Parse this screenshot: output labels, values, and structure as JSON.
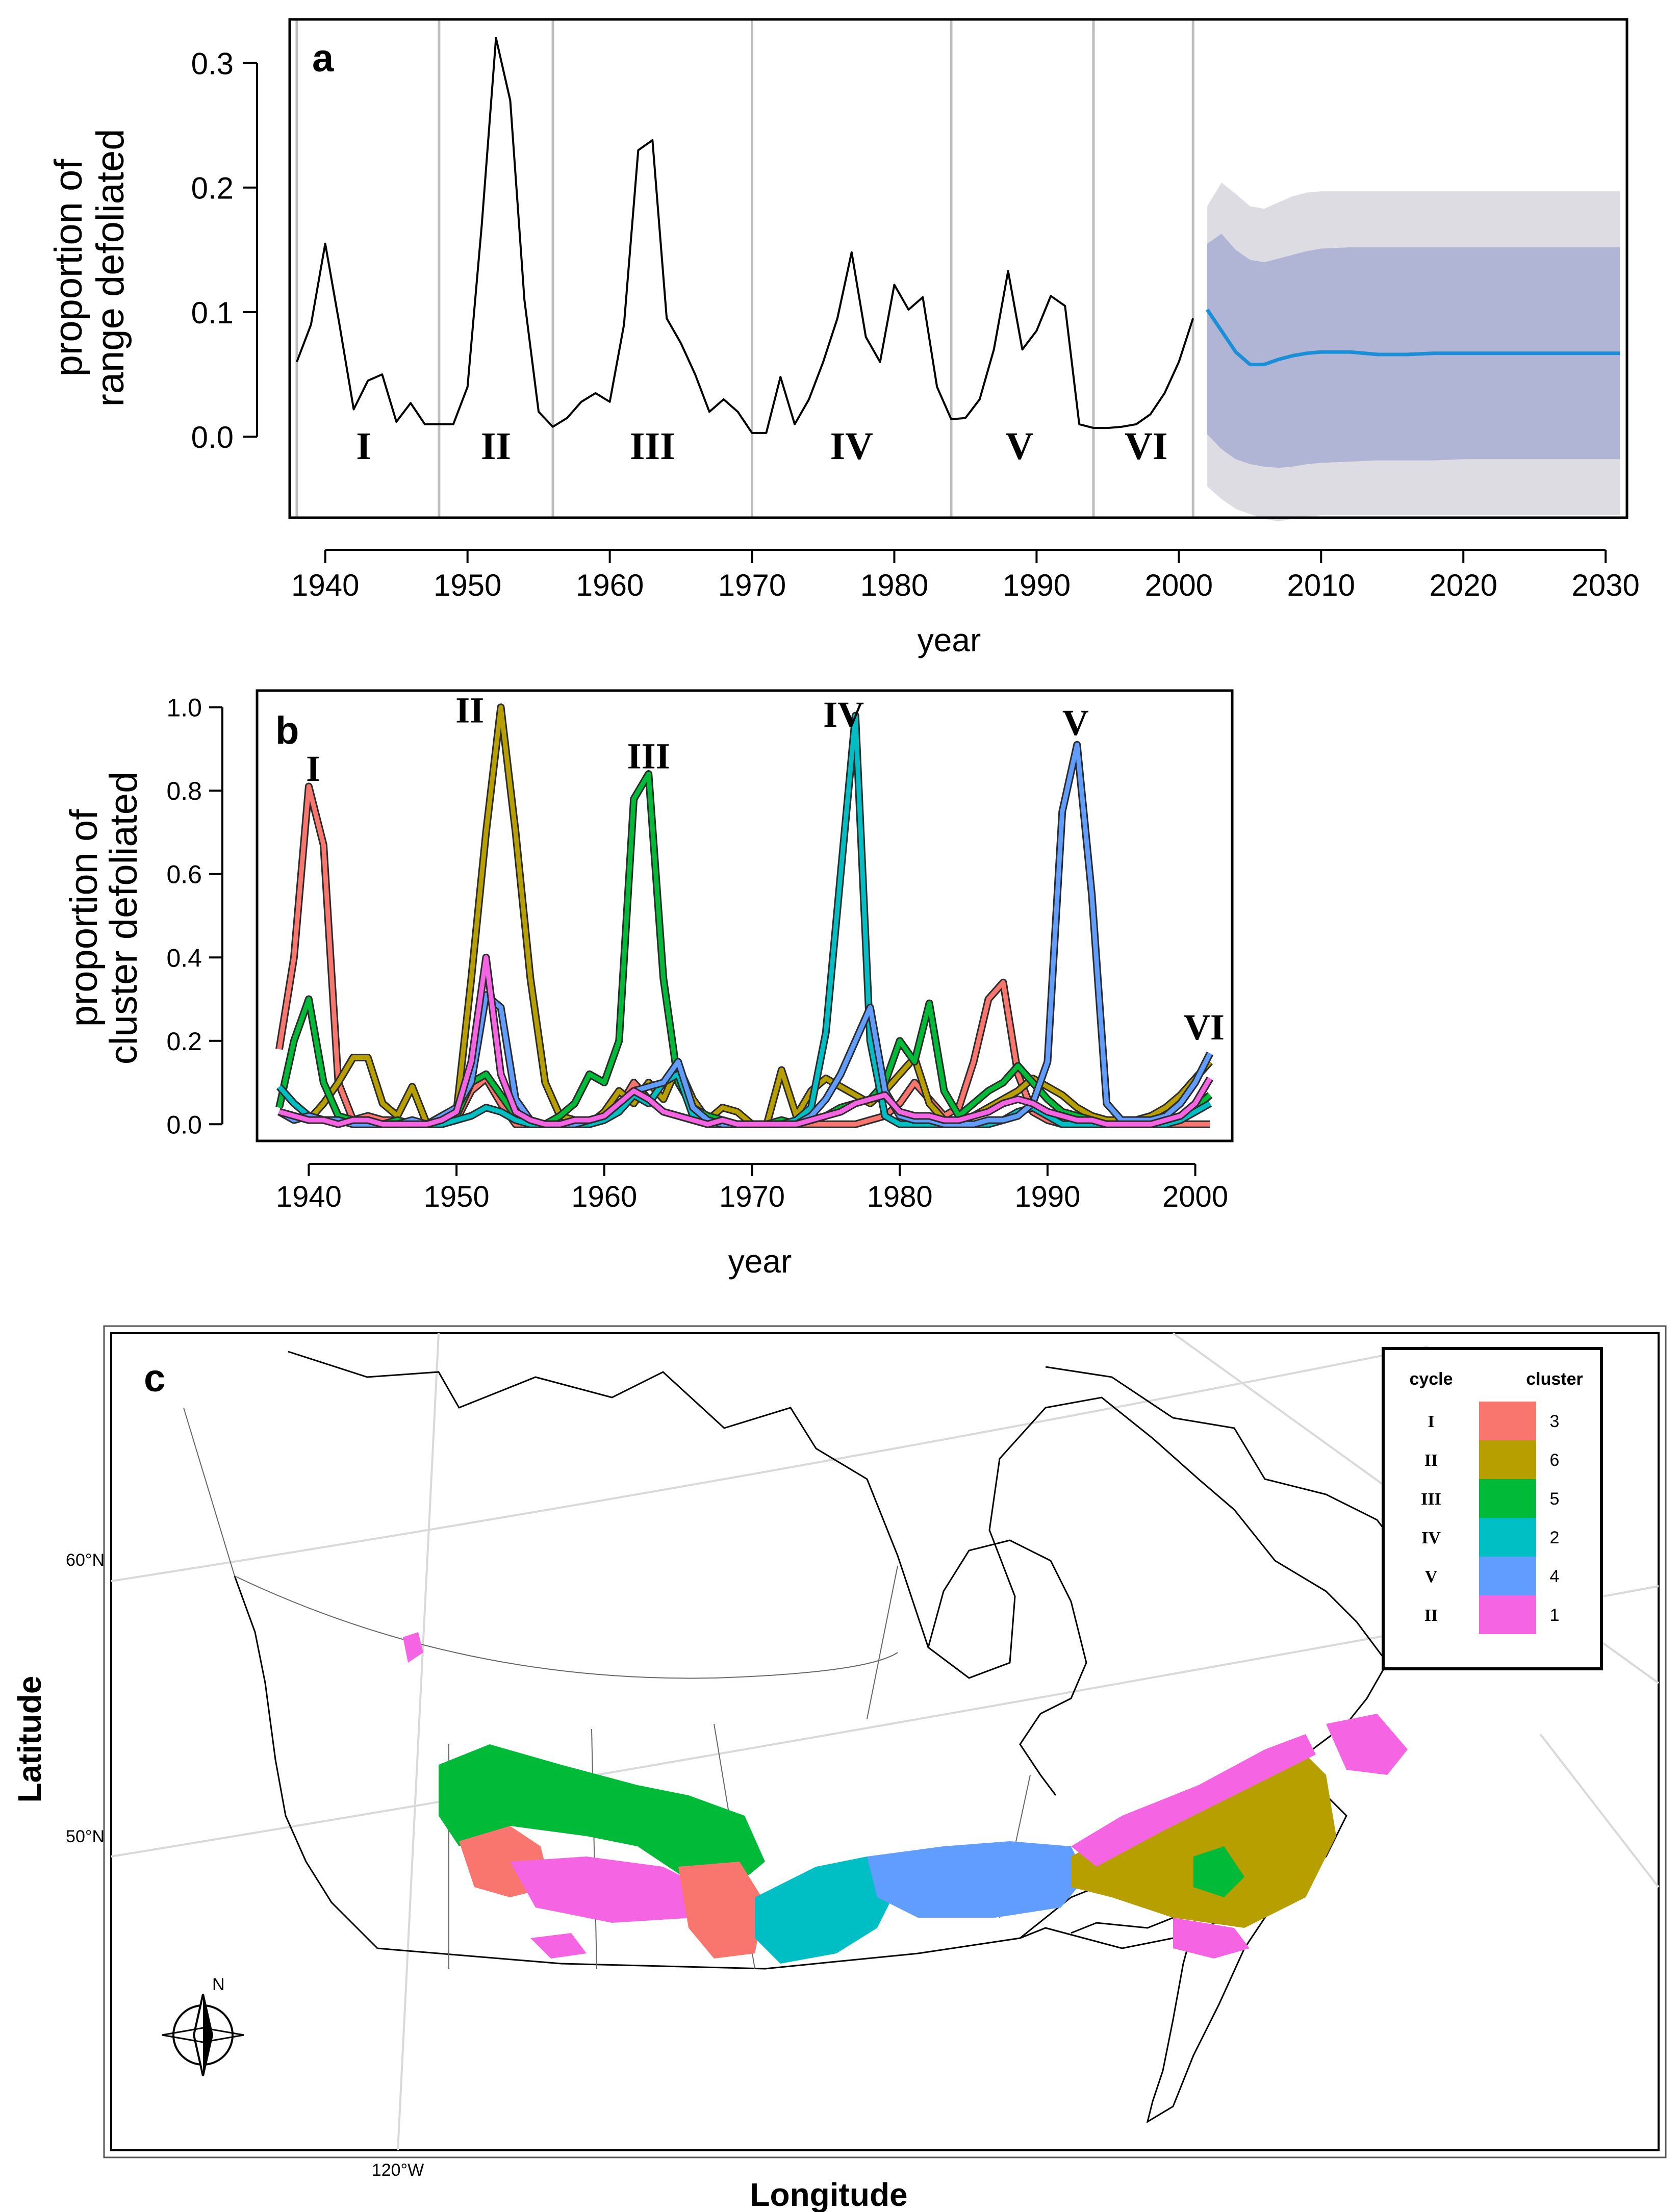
{
  "chart_data": [
    {
      "panel": "a",
      "type": "line",
      "xlabel": "year",
      "ylabel_line1": "proportion of",
      "ylabel_line2": "range defoliated",
      "xlim": [
        1937.5,
        2031.5
      ],
      "ylim": [
        -0.065,
        0.335
      ],
      "xticks": [
        1940,
        1950,
        1960,
        1970,
        1980,
        1990,
        2000,
        2010,
        2020,
        2030
      ],
      "yticks": [
        "0.0",
        "0.1",
        "0.2",
        "0.3"
      ],
      "cycle_boundaries": [
        1938,
        1948,
        1956,
        1970,
        1984,
        1994,
        2001
      ],
      "cycle_labels": [
        {
          "label": "I",
          "x": 1942.7
        },
        {
          "label": "II",
          "x": 1952.0
        },
        {
          "label": "III",
          "x": 1963.0
        },
        {
          "label": "IV",
          "x": 1977.0
        },
        {
          "label": "V",
          "x": 1988.8
        },
        {
          "label": "VI",
          "x": 1997.7
        }
      ],
      "observed": {
        "x": [
          1938,
          1939,
          1940,
          1941,
          1942,
          1943,
          1944,
          1945,
          1946,
          1947,
          1948,
          1949,
          1950,
          1951,
          1952,
          1953,
          1954,
          1955,
          1956,
          1957,
          1958,
          1959,
          1960,
          1961,
          1962,
          1963,
          1964,
          1965,
          1966,
          1967,
          1968,
          1969,
          1970,
          1971,
          1972,
          1973,
          1974,
          1975,
          1976,
          1977,
          1978,
          1979,
          1980,
          1981,
          1982,
          1983,
          1984,
          1985,
          1986,
          1987,
          1988,
          1989,
          1990,
          1991,
          1992,
          1993,
          1994,
          1995,
          1996,
          1997,
          1998,
          1999,
          2000,
          2001
        ],
        "y": [
          0.06,
          0.09,
          0.155,
          0.09,
          0.022,
          0.045,
          0.05,
          0.012,
          0.027,
          0.01,
          0.01,
          0.01,
          0.04,
          0.17,
          0.32,
          0.27,
          0.11,
          0.02,
          0.008,
          0.015,
          0.028,
          0.035,
          0.028,
          0.09,
          0.23,
          0.238,
          0.095,
          0.075,
          0.05,
          0.02,
          0.03,
          0.02,
          0.003,
          0.003,
          0.048,
          0.01,
          0.03,
          0.06,
          0.095,
          0.148,
          0.08,
          0.06,
          0.122,
          0.102,
          0.112,
          0.04,
          0.014,
          0.015,
          0.03,
          0.07,
          0.133,
          0.07,
          0.085,
          0.113,
          0.105,
          0.01,
          0.007,
          0.007,
          0.008,
          0.01,
          0.018,
          0.035,
          0.06,
          0.095
        ]
      },
      "forecast": {
        "x": [
          2002,
          2003,
          2004,
          2005,
          2006,
          2007,
          2008,
          2009,
          2010,
          2012,
          2014,
          2016,
          2018,
          2020,
          2025,
          2031
        ],
        "mean": [
          0.102,
          0.085,
          0.068,
          0.058,
          0.058,
          0.062,
          0.065,
          0.067,
          0.068,
          0.068,
          0.066,
          0.066,
          0.067,
          0.067,
          0.067,
          0.067
        ],
        "inner_upper": [
          0.155,
          0.163,
          0.15,
          0.142,
          0.14,
          0.143,
          0.146,
          0.149,
          0.151,
          0.152,
          0.152,
          0.152,
          0.152,
          0.152,
          0.152,
          0.152
        ],
        "inner_lower": [
          0.002,
          -0.01,
          -0.018,
          -0.022,
          -0.024,
          -0.025,
          -0.024,
          -0.022,
          -0.021,
          -0.02,
          -0.019,
          -0.019,
          -0.019,
          -0.018,
          -0.018,
          -0.018
        ],
        "outer_upper": [
          0.185,
          0.204,
          0.195,
          0.185,
          0.183,
          0.188,
          0.193,
          0.196,
          0.197,
          0.197,
          0.197,
          0.197,
          0.197,
          0.197,
          0.197,
          0.197
        ],
        "outer_lower": [
          -0.04,
          -0.05,
          -0.058,
          -0.062,
          -0.066,
          -0.068,
          -0.066,
          -0.064,
          -0.063,
          -0.063,
          -0.063,
          -0.063,
          -0.063,
          -0.063,
          -0.063,
          -0.063
        ]
      },
      "colors": {
        "observed": "#000000",
        "forecast": "#1a8fd8",
        "inner_band": "#b0b5d5",
        "outer_band": "#dcdce2",
        "gridline": "#bdbdbd"
      }
    },
    {
      "panel": "b",
      "type": "line",
      "xlabel": "year",
      "ylabel_line1": "proportion of",
      "ylabel_line2": "cluster defoliated",
      "xlim": [
        1936.5,
        2002.5
      ],
      "ylim": [
        -0.04,
        1.04
      ],
      "xticks": [
        1940,
        1950,
        1960,
        1970,
        1980,
        1990,
        2000
      ],
      "yticks": [
        "0.0",
        "0.2",
        "0.4",
        "0.6",
        "0.8",
        "1.0"
      ],
      "peak_labels": [
        {
          "label": "I",
          "x": 1940.3,
          "y": 0.86
        },
        {
          "label": "II",
          "x": 1950.9,
          "y": 1.0
        },
        {
          "label": "III",
          "x": 1963.0,
          "y": 0.89
        },
        {
          "label": "IV",
          "x": 1976.2,
          "y": 0.99
        },
        {
          "label": "V",
          "x": 1991.9,
          "y": 0.97
        },
        {
          "label": "VI",
          "x": 2000.6,
          "y": 0.24
        }
      ],
      "x": [
        1938,
        1939,
        1940,
        1941,
        1942,
        1943,
        1944,
        1945,
        1946,
        1947,
        1948,
        1949,
        1950,
        1951,
        1952,
        1953,
        1954,
        1955,
        1956,
        1957,
        1958,
        1959,
        1960,
        1961,
        1962,
        1963,
        1964,
        1965,
        1966,
        1967,
        1968,
        1969,
        1970,
        1971,
        1972,
        1973,
        1974,
        1975,
        1976,
        1977,
        1978,
        1979,
        1980,
        1981,
        1982,
        1983,
        1984,
        1985,
        1986,
        1987,
        1988,
        1989,
        1990,
        1991,
        1992,
        1993,
        1994,
        1995,
        1996,
        1997,
        1998,
        1999,
        2000,
        2001
      ],
      "series": [
        {
          "name": "cluster 3",
          "color": "#f8766d",
          "values": [
            0.18,
            0.4,
            0.81,
            0.67,
            0.1,
            0.01,
            0.02,
            0.01,
            0.01,
            0.0,
            0.0,
            0.0,
            0.01,
            0.08,
            0.11,
            0.05,
            0.0,
            0.0,
            0.0,
            0.0,
            0.0,
            0.01,
            0.02,
            0.04,
            0.1,
            0.06,
            0.03,
            0.02,
            0.01,
            0.0,
            0.01,
            0.0,
            0.0,
            0.0,
            0.0,
            0.0,
            0.0,
            0.0,
            0.0,
            0.0,
            0.01,
            0.02,
            0.05,
            0.1,
            0.06,
            0.02,
            0.04,
            0.15,
            0.3,
            0.34,
            0.12,
            0.03,
            0.01,
            0.0,
            0.0,
            0.0,
            0.0,
            0.0,
            0.0,
            0.0,
            0.0,
            0.0,
            0.0,
            0.0
          ]
        },
        {
          "name": "cluster 6",
          "color": "#b79f00",
          "values": [
            0.03,
            0.02,
            0.01,
            0.05,
            0.1,
            0.16,
            0.16,
            0.05,
            0.02,
            0.09,
            0.0,
            0.02,
            0.03,
            0.35,
            0.7,
            1.0,
            0.7,
            0.35,
            0.1,
            0.02,
            0.01,
            0.0,
            0.03,
            0.08,
            0.05,
            0.1,
            0.06,
            0.14,
            0.06,
            0.01,
            0.04,
            0.03,
            0.0,
            0.0,
            0.13,
            0.02,
            0.08,
            0.11,
            0.09,
            0.07,
            0.05,
            0.08,
            0.12,
            0.16,
            0.05,
            0.01,
            0.01,
            0.02,
            0.04,
            0.06,
            0.08,
            0.11,
            0.09,
            0.07,
            0.04,
            0.02,
            0.01,
            0.01,
            0.01,
            0.02,
            0.04,
            0.07,
            0.11,
            0.15
          ]
        },
        {
          "name": "cluster 5",
          "color": "#00ba38",
          "values": [
            0.04,
            0.2,
            0.3,
            0.1,
            0.02,
            0.01,
            0.01,
            0.0,
            0.01,
            0.0,
            0.0,
            0.01,
            0.02,
            0.1,
            0.12,
            0.07,
            0.02,
            0.01,
            0.0,
            0.02,
            0.05,
            0.12,
            0.1,
            0.2,
            0.78,
            0.84,
            0.35,
            0.1,
            0.04,
            0.02,
            0.01,
            0.0,
            0.0,
            0.0,
            0.01,
            0.0,
            0.01,
            0.02,
            0.04,
            0.05,
            0.06,
            0.1,
            0.2,
            0.15,
            0.29,
            0.08,
            0.02,
            0.05,
            0.08,
            0.1,
            0.14,
            0.1,
            0.06,
            0.03,
            0.02,
            0.01,
            0.0,
            0.0,
            0.0,
            0.0,
            0.01,
            0.02,
            0.04,
            0.07
          ]
        },
        {
          "name": "cluster 2",
          "color": "#00bfc4",
          "values": [
            0.09,
            0.05,
            0.02,
            0.01,
            0.01,
            0.0,
            0.0,
            0.0,
            0.0,
            0.0,
            0.0,
            0.0,
            0.01,
            0.02,
            0.04,
            0.03,
            0.01,
            0.0,
            0.0,
            0.0,
            0.0,
            0.0,
            0.01,
            0.03,
            0.07,
            0.05,
            0.1,
            0.12,
            0.02,
            0.0,
            0.0,
            0.0,
            0.0,
            0.0,
            0.0,
            0.01,
            0.04,
            0.22,
            0.6,
            0.98,
            0.2,
            0.02,
            0.0,
            0.0,
            0.0,
            0.0,
            0.0,
            0.0,
            0.0,
            0.01,
            0.03,
            0.04,
            0.02,
            0.0,
            0.0,
            0.0,
            0.0,
            0.0,
            0.0,
            0.0,
            0.0,
            0.01,
            0.03,
            0.05
          ]
        },
        {
          "name": "cluster 4",
          "color": "#619cff",
          "values": [
            0.03,
            0.01,
            0.02,
            0.01,
            0.01,
            0.0,
            0.0,
            0.0,
            0.0,
            0.01,
            0.0,
            0.02,
            0.04,
            0.1,
            0.31,
            0.28,
            0.06,
            0.01,
            0.0,
            0.0,
            0.0,
            0.01,
            0.02,
            0.05,
            0.08,
            0.09,
            0.1,
            0.15,
            0.04,
            0.01,
            0.0,
            0.0,
            0.0,
            0.0,
            0.0,
            0.0,
            0.02,
            0.06,
            0.12,
            0.2,
            0.28,
            0.08,
            0.02,
            0.01,
            0.01,
            0.0,
            0.0,
            0.0,
            0.01,
            0.01,
            0.02,
            0.05,
            0.15,
            0.75,
            0.91,
            0.55,
            0.05,
            0.01,
            0.01,
            0.01,
            0.02,
            0.05,
            0.1,
            0.17
          ]
        },
        {
          "name": "cluster 1",
          "color": "#f564e3",
          "values": [
            0.03,
            0.02,
            0.01,
            0.01,
            0.0,
            0.01,
            0.01,
            0.0,
            0.0,
            0.0,
            0.0,
            0.01,
            0.03,
            0.15,
            0.4,
            0.12,
            0.03,
            0.01,
            0.0,
            0.0,
            0.01,
            0.01,
            0.02,
            0.05,
            0.08,
            0.06,
            0.03,
            0.02,
            0.01,
            0.0,
            0.01,
            0.0,
            0.0,
            0.0,
            0.0,
            0.0,
            0.01,
            0.02,
            0.03,
            0.05,
            0.06,
            0.07,
            0.03,
            0.02,
            0.02,
            0.01,
            0.01,
            0.02,
            0.03,
            0.05,
            0.06,
            0.05,
            0.03,
            0.02,
            0.01,
            0.01,
            0.0,
            0.0,
            0.0,
            0.0,
            0.01,
            0.02,
            0.05,
            0.11
          ]
        }
      ]
    }
  ],
  "panel_c": {
    "letter": "c",
    "xlabel": "Longitude",
    "ylabel": "Latitude",
    "lat_labels": [
      "60°N",
      "50°N"
    ],
    "lon_labels": [
      "120°W"
    ],
    "north_label": "N",
    "legend": {
      "header_cycle": "cycle",
      "header_cluster": "cluster",
      "rows": [
        {
          "cycle": "I",
          "cluster": "3",
          "color": "#f8766d"
        },
        {
          "cycle": "II",
          "cluster": "6",
          "color": "#b79f00"
        },
        {
          "cycle": "III",
          "cluster": "5",
          "color": "#00ba38"
        },
        {
          "cycle": "IV",
          "cluster": "2",
          "color": "#00bfc4"
        },
        {
          "cycle": "V",
          "cluster": "4",
          "color": "#619cff"
        },
        {
          "cycle": "II",
          "cluster": "1",
          "color": "#f564e3"
        }
      ]
    }
  }
}
